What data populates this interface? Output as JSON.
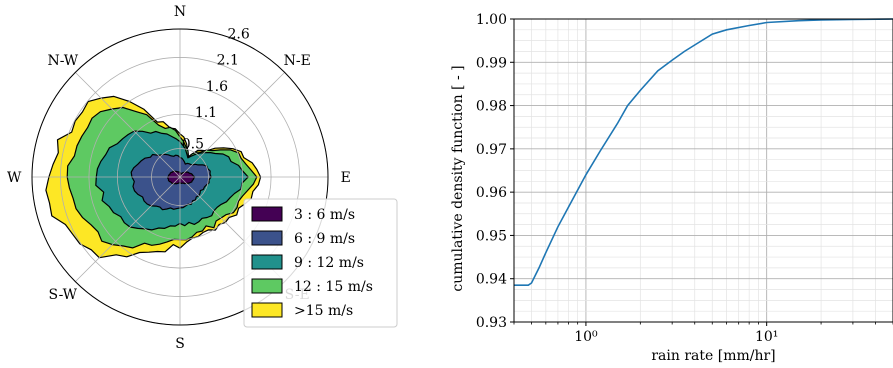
{
  "chart_data": [
    {
      "type": "polar-area",
      "title": "",
      "directions": [
        "N",
        "N-E",
        "E",
        "S-E",
        "S",
        "S-W",
        "W",
        "N-W"
      ],
      "radial_ticks": [
        "0.5",
        "1.1",
        "1.6",
        "2.1",
        "2.6"
      ],
      "radial_tick_values": [
        0.5,
        1.1,
        1.6,
        2.1,
        2.6
      ],
      "rmax": 2.6,
      "grid": true,
      "legend_position": "bottom-right",
      "angles_deg": [
        0,
        22.5,
        45,
        67.5,
        90,
        112.5,
        135,
        157.5,
        180,
        202.5,
        225,
        247.5,
        270,
        292.5,
        315,
        337.5
      ],
      "series": [
        {
          "name": "3 : 6 m/s",
          "color": "#440154",
          "values": [
            0.08,
            0.06,
            0.12,
            0.18,
            0.25,
            0.22,
            0.16,
            0.12,
            0.1,
            0.12,
            0.16,
            0.2,
            0.22,
            0.18,
            0.14,
            0.1
          ]
        },
        {
          "name": "6 : 9 m/s",
          "color": "#3b528b",
          "values": [
            0.35,
            0.25,
            0.3,
            0.5,
            0.55,
            0.45,
            0.45,
            0.5,
            0.55,
            0.6,
            0.7,
            0.8,
            0.85,
            0.75,
            0.55,
            0.4
          ]
        },
        {
          "name": "9 : 12 m/s",
          "color": "#21918c",
          "values": [
            0.65,
            0.35,
            0.6,
            0.9,
            1.15,
            0.95,
            0.85,
            0.85,
            0.85,
            0.95,
            1.25,
            1.35,
            1.45,
            1.35,
            1.1,
            0.8
          ]
        },
        {
          "name": "12 : 15 m/s",
          "color": "#5ec962",
          "values": [
            0.72,
            0.38,
            0.65,
            1.1,
            1.35,
            1.15,
            1.05,
            1.0,
            1.1,
            1.25,
            1.7,
            1.9,
            2.0,
            1.85,
            1.75,
            1.0
          ]
        },
        {
          "name": ">15 m/s",
          "color": "#fde725",
          "values": [
            0.78,
            0.4,
            0.68,
            1.15,
            1.45,
            1.2,
            1.1,
            1.05,
            1.2,
            1.4,
            1.95,
            2.25,
            2.35,
            2.15,
            2.05,
            1.05
          ]
        }
      ],
      "edge_color": "#000000"
    },
    {
      "type": "line",
      "title": "",
      "xlabel": "rain rate [mm/hr]",
      "ylabel": "cumulative density function [ - ]",
      "xscale": "log",
      "xlim": [
        0.4,
        50
      ],
      "ylim": [
        0.93,
        1.0
      ],
      "xtick_values": [
        1,
        10
      ],
      "xtick_labels": [
        "10⁰",
        "10¹"
      ],
      "ytick_labels": [
        "0.93",
        "0.94",
        "0.95",
        "0.96",
        "0.97",
        "0.98",
        "0.99",
        "1.00"
      ],
      "grid": true,
      "series": [
        {
          "color": "#1f77b4",
          "x": [
            0.4,
            0.48,
            0.5,
            0.55,
            0.6,
            0.7,
            0.8,
            0.9,
            1.0,
            1.2,
            1.5,
            1.7,
            2.0,
            2.5,
            3.0,
            3.5,
            4.0,
            5.0,
            6.0,
            8.0,
            10.0,
            15.0,
            20.0,
            30.0,
            50.0
          ],
          "y": [
            0.9385,
            0.9385,
            0.939,
            0.9425,
            0.946,
            0.952,
            0.9565,
            0.9605,
            0.964,
            0.9695,
            0.976,
            0.98,
            0.9835,
            0.988,
            0.9905,
            0.9925,
            0.994,
            0.9965,
            0.9975,
            0.9985,
            0.9992,
            0.9996,
            0.9998,
            0.9999,
            1.0
          ]
        }
      ]
    }
  ]
}
